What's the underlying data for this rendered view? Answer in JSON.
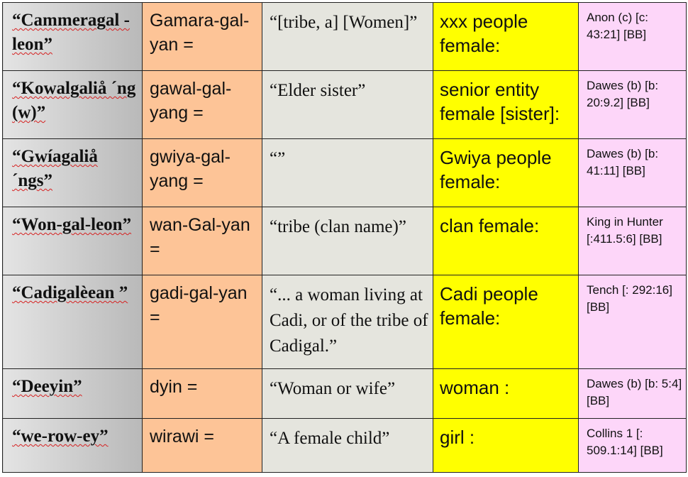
{
  "rows": [
    {
      "word": "“Cammeragal -leon”",
      "form": "Gamara-gal-yan =",
      "gloss": "“[tribe, a] [Women]”",
      "meaning": "xxx people female:",
      "source": "Anon (c) [c: 43:21] [BB]"
    },
    {
      "word": "“Kowalgaliå ´ng (w)”",
      "form": "gawal-gal-yang =",
      "gloss": "“Elder sister”",
      "meaning": "senior entity female [sister]:",
      "source": "Dawes (b) [b: 20:9.2] [BB]"
    },
    {
      "word": "“Gwíagaliå ´ngs”",
      "form": "gwiya-gal-yang =",
      "gloss": "“”",
      "meaning": "Gwiya people female:",
      "source": "Dawes (b) [b: 41:11] [BB]"
    },
    {
      "word": "“Won-gal-leon”",
      "form": "wan-Gal-yan =",
      "gloss": "“tribe (clan name)”",
      "meaning": "clan female:",
      "source": "King in Hunter [:411.5:6] [BB]"
    },
    {
      "word": "“Cadigalèean ”",
      "form": "gadi-gal-yan =",
      "gloss": "“... a woman living at Cadi, or of the tribe of Cadigal.”",
      "meaning": "Cadi people female:",
      "source": "Tench [: 292:16] [BB]"
    },
    {
      "word": "“Deeyin”",
      "form": "dyin =",
      "gloss": "“Woman or wife”",
      "meaning": "woman :",
      "source": "Dawes (b) [b: 5:4] [BB]"
    },
    {
      "word": "“we-row-ey”",
      "form": "wirawi =",
      "gloss": "“A female child”",
      "meaning": "girl :",
      "source": "Collins 1 [: 509.1:14] [BB]"
    }
  ]
}
